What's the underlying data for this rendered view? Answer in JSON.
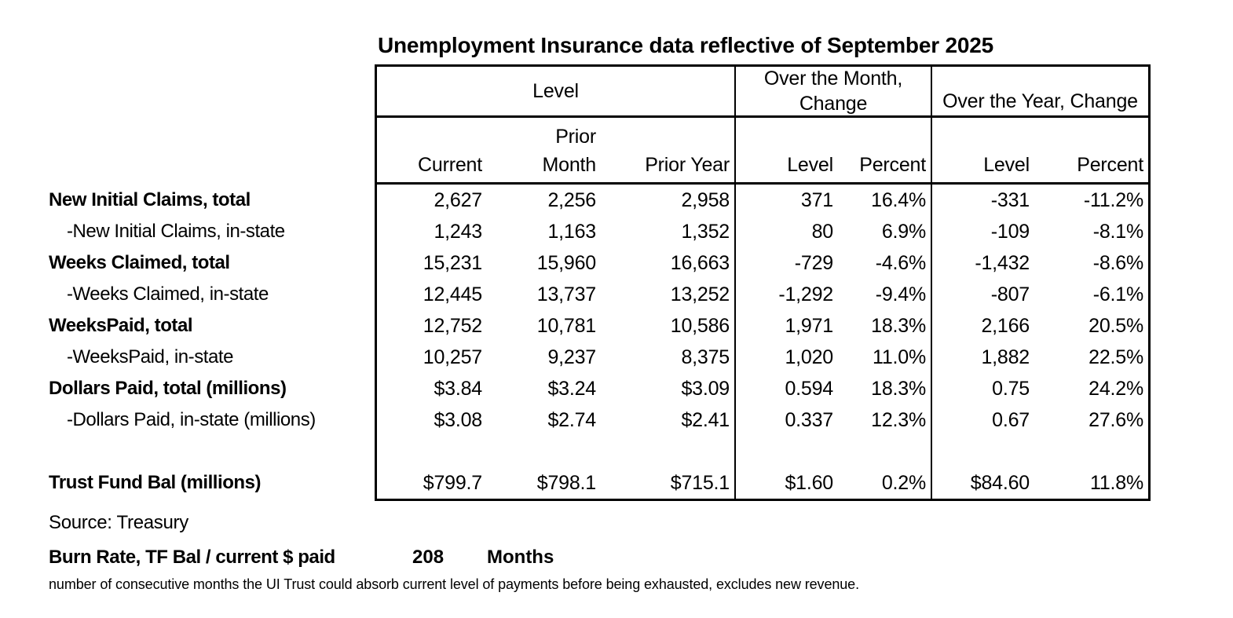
{
  "title": "Unemployment Insurance data reflective of September 2025",
  "colors": {
    "text": "#000000",
    "background": "#ffffff",
    "border": "#000000"
  },
  "table": {
    "group_headers": [
      {
        "id": "level",
        "lines": [
          "Level"
        ],
        "span": 3
      },
      {
        "id": "over-the-month-change",
        "lines": [
          "Over the Month,",
          "Change"
        ],
        "span": 2
      },
      {
        "id": "over-the-year-change",
        "lines": [
          "Over the Year, Change"
        ],
        "span": 2
      }
    ],
    "sub_headers": [
      {
        "id": "current",
        "lines": [
          "Current"
        ]
      },
      {
        "id": "prior-month",
        "lines": [
          "Prior",
          "Month"
        ]
      },
      {
        "id": "prior-year",
        "lines": [
          "Prior Year"
        ]
      },
      {
        "id": "otm-level",
        "lines": [
          "Level"
        ]
      },
      {
        "id": "otm-percent",
        "lines": [
          "Percent"
        ]
      },
      {
        "id": "oty-level",
        "lines": [
          "Level"
        ]
      },
      {
        "id": "oty-percent",
        "lines": [
          "Percent"
        ]
      }
    ],
    "rows": [
      {
        "label": "New Initial Claims, total",
        "bold": true,
        "indent": false,
        "values": [
          "2,627",
          "2,256",
          "2,958",
          "371",
          "16.4%",
          "-331",
          "-11.2%"
        ]
      },
      {
        "label": "-New Initial Claims, in-state",
        "bold": false,
        "indent": true,
        "values": [
          "1,243",
          "1,163",
          "1,352",
          "80",
          "6.9%",
          "-109",
          "-8.1%"
        ]
      },
      {
        "label": "Weeks Claimed, total",
        "bold": true,
        "indent": false,
        "values": [
          "15,231",
          "15,960",
          "16,663",
          "-729",
          "-4.6%",
          "-1,432",
          "-8.6%"
        ]
      },
      {
        "label": "-Weeks Claimed, in-state",
        "bold": false,
        "indent": true,
        "values": [
          "12,445",
          "13,737",
          "13,252",
          "-1,292",
          "-9.4%",
          "-807",
          "-6.1%"
        ]
      },
      {
        "label": "WeeksPaid, total",
        "bold": true,
        "indent": false,
        "values": [
          "12,752",
          "10,781",
          "10,586",
          "1,971",
          "18.3%",
          "2,166",
          "20.5%"
        ]
      },
      {
        "label": "-WeeksPaid, in-state",
        "bold": false,
        "indent": true,
        "values": [
          "10,257",
          "9,237",
          "8,375",
          "1,020",
          "11.0%",
          "1,882",
          "22.5%"
        ]
      },
      {
        "label": "Dollars Paid, total (millions)",
        "bold": true,
        "indent": false,
        "values": [
          "$3.84",
          "$3.24",
          "$3.09",
          "0.594",
          "18.3%",
          "0.75",
          "24.2%"
        ]
      },
      {
        "label": "-Dollars Paid, in-state (millions)",
        "bold": false,
        "indent": true,
        "values": [
          "$3.08",
          "$2.74",
          "$2.41",
          "0.337",
          "12.3%",
          "0.67",
          "27.6%"
        ]
      },
      {
        "label": "",
        "bold": false,
        "indent": false,
        "values": [
          "",
          "",
          "",
          "",
          "",
          "",
          ""
        ]
      },
      {
        "label": "Trust Fund Bal (millions)",
        "bold": true,
        "indent": false,
        "values": [
          "$799.7",
          "$798.1",
          "$715.1",
          "$1.60",
          "0.2%",
          "$84.60",
          "11.8%"
        ]
      }
    ]
  },
  "footer": {
    "source": "Source: Treasury",
    "burn_rate_label": "Burn Rate, TF Bal / current $ paid",
    "burn_rate_value": "208",
    "burn_rate_unit": "Months",
    "note": "number of consecutive months the UI Trust could absorb current level of payments before being exhausted, excludes new revenue."
  }
}
